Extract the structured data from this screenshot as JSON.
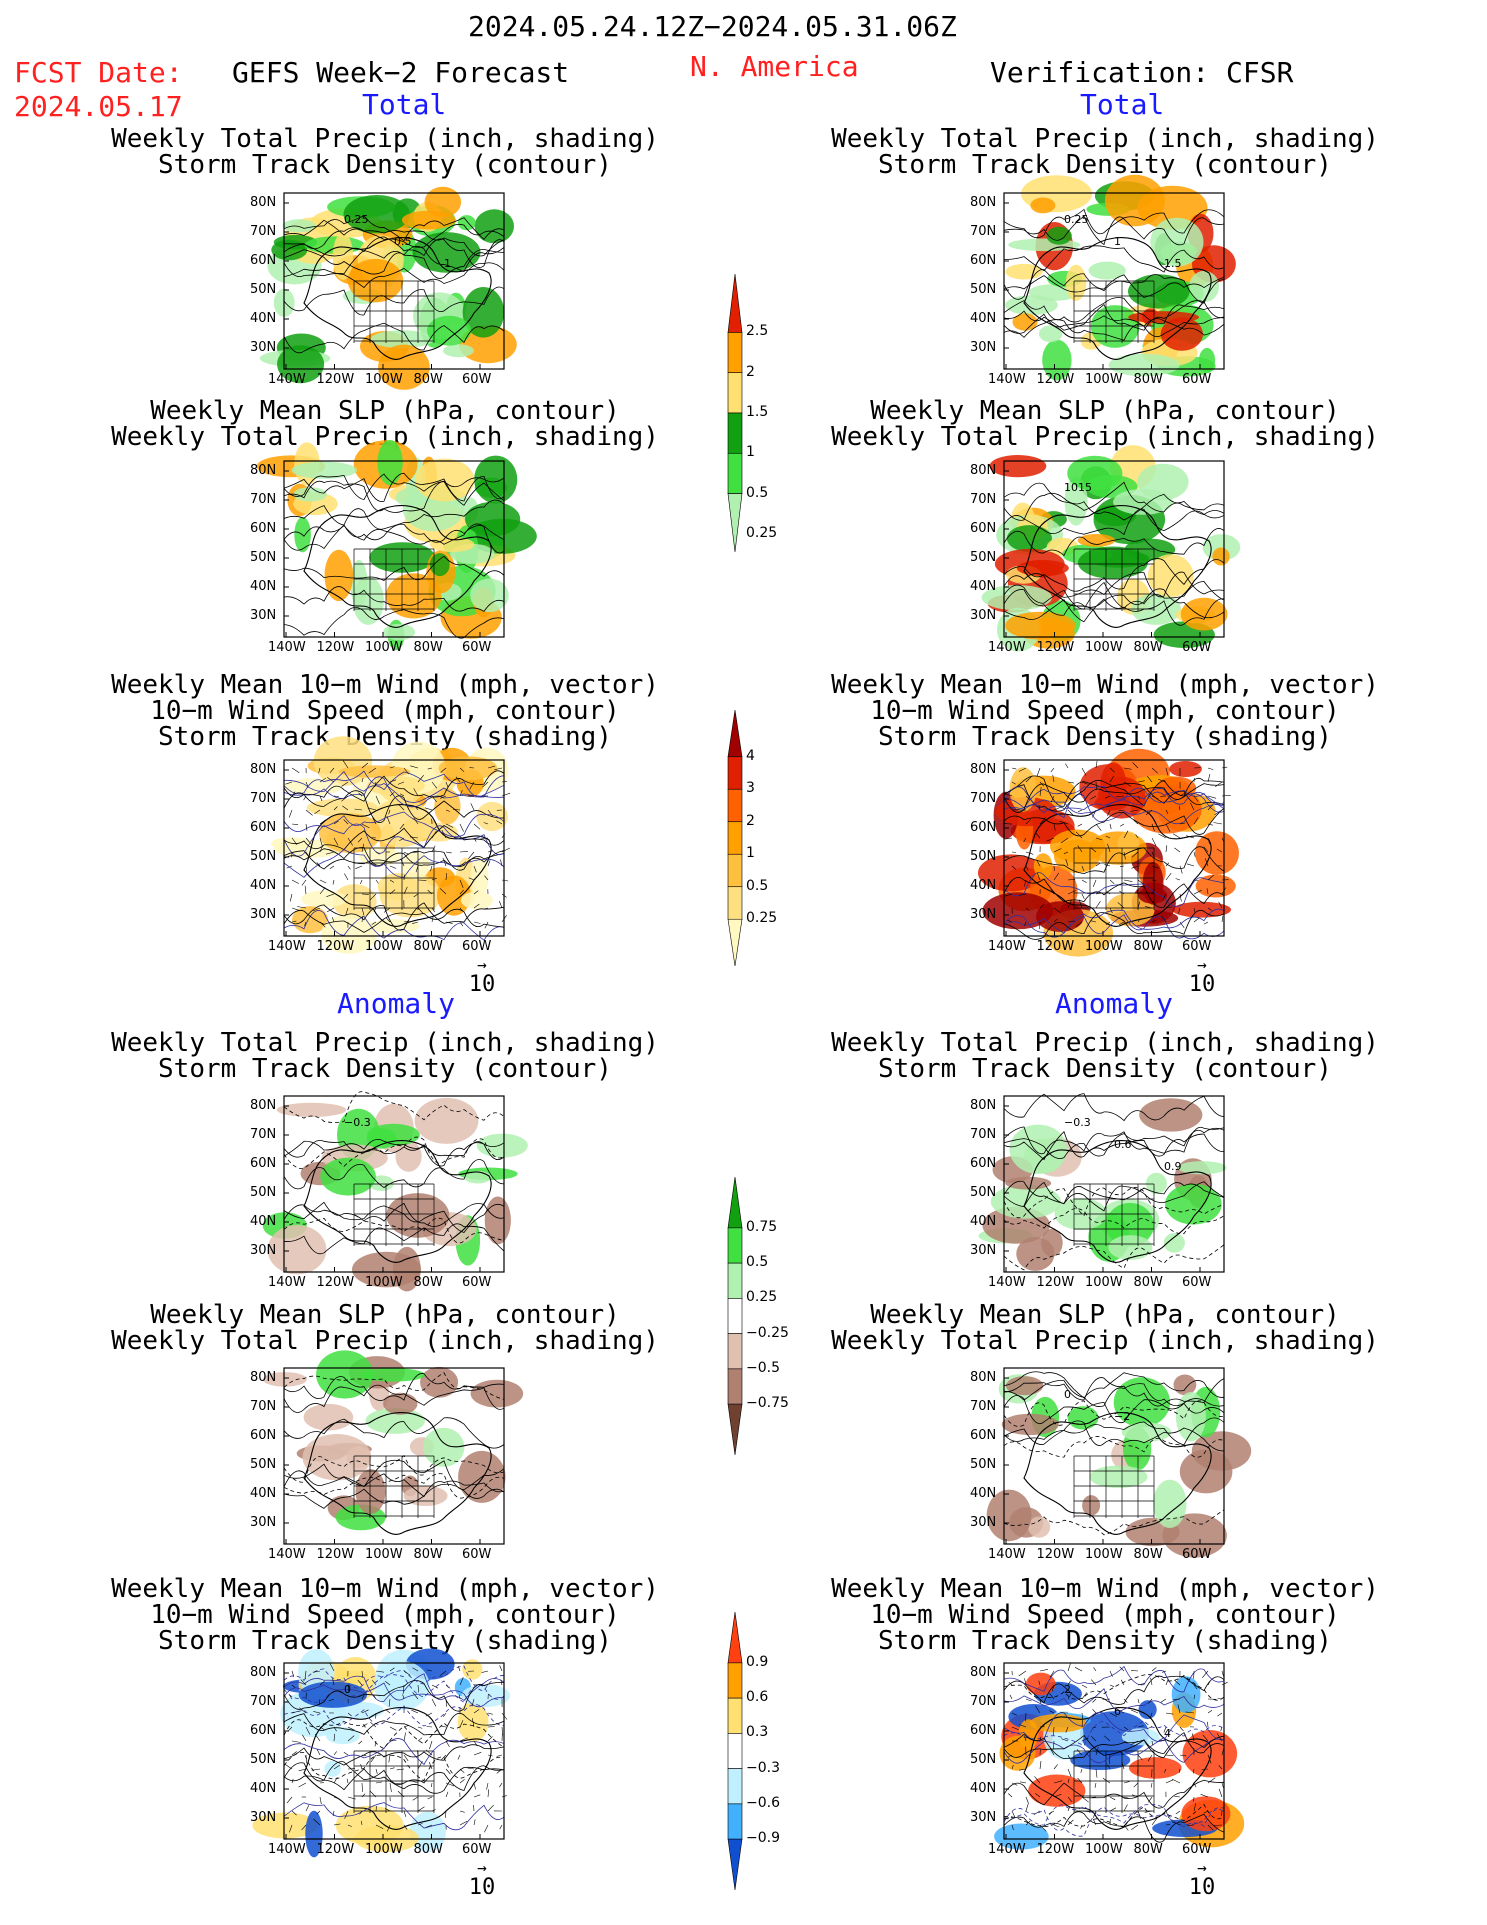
{
  "header": {
    "date_range": "2024.05.24.12Z−2024.05.31.06Z",
    "fcst_label": "FCST Date:",
    "fcst_date": "2024.05.17",
    "forecast_title": "GEFS Week−2 Forecast",
    "region": "N. America",
    "verification": "Verification: CFSR"
  },
  "sections": {
    "total": "Total",
    "anomaly": "Anomaly"
  },
  "titles": {
    "precip_track": [
      "Weekly Total Precip (inch, shading)",
      "Storm Track Density (contour)"
    ],
    "slp_precip": [
      "Weekly Mean SLP (hPa, contour)",
      "Weekly Total Precip (inch, shading)"
    ],
    "wind_track": [
      "Weekly Mean 10−m Wind (mph, vector)",
      "10−m Wind Speed (mph, contour)",
      "Storm Track Density (shading)"
    ]
  },
  "axes": {
    "lat_labels": [
      "80N",
      "70N",
      "60N",
      "50N",
      "40N",
      "30N"
    ],
    "lon_labels": [
      "140W",
      "120W",
      "100W",
      "80W",
      "60W"
    ]
  },
  "vector_ref": "10",
  "colorbars": {
    "precip_total": {
      "labels": [
        "2.5",
        "2",
        "1.5",
        "1",
        "0.5",
        "0.25"
      ],
      "colors": [
        "#e02000",
        "#ffa000",
        "#ffe070",
        "#10a010",
        "#40e040",
        "#b0f0b0"
      ]
    },
    "track_total": {
      "labels": [
        "4",
        "3",
        "2",
        "1",
        "0.5",
        "0.25"
      ],
      "colors": [
        "#a00000",
        "#e02000",
        "#ff6000",
        "#ffa000",
        "#ffc040",
        "#ffe080",
        "#fff8c0"
      ]
    },
    "precip_anom": {
      "labels": [
        "0.75",
        "0.5",
        "0.25",
        "−0.25",
        "−0.5",
        "−0.75"
      ],
      "colors": [
        "#10a010",
        "#40e040",
        "#b0f0b0",
        "#ffffff",
        "#e0c0b0",
        "#b08070",
        "#704030"
      ]
    },
    "track_anom": {
      "labels": [
        "0.9",
        "0.6",
        "0.3",
        "−0.3",
        "−0.6",
        "−0.9"
      ],
      "colors": [
        "#ff4010",
        "#ffa000",
        "#ffe070",
        "#ffffff",
        "#c0f0ff",
        "#40b0ff",
        "#1050d0"
      ]
    }
  },
  "panel_contour_labels": {
    "p1": [
      "0.25",
      "0.5",
      "1"
    ],
    "p2": [
      "0.25",
      "1",
      "1.5"
    ],
    "p4": [
      "1015"
    ],
    "p7": [
      "−0.3"
    ],
    "p8": [
      "−0.3",
      "0.6",
      "0.9"
    ],
    "p10": [
      "0",
      "−2"
    ],
    "p11": [
      "0"
    ],
    "p12": [
      "2",
      "6",
      "4"
    ]
  },
  "panel_palette": {
    "p_total_precip_fc": [
      "#b0f0b0",
      "#40e040",
      "#10a010",
      "#ffe070",
      "#ffa000"
    ],
    "p_total_precip_ver": [
      "#b0f0b0",
      "#40e040",
      "#10a010",
      "#ffe070",
      "#ffa000",
      "#e02000"
    ],
    "p_track_fc": [
      "#fff8c0",
      "#ffe080",
      "#ffc040",
      "#ffa000"
    ],
    "p_track_ver": [
      "#ffc040",
      "#ffa000",
      "#ff6000",
      "#e02000",
      "#a00000"
    ],
    "p_anom_precip": [
      "#b0f0b0",
      "#40e040",
      "#e0c0b0",
      "#b08070"
    ],
    "p_anom_track_fc": [
      "#c0f0ff",
      "#40b0ff",
      "#1050d0",
      "#ffe070"
    ],
    "p_anom_track_ver": [
      "#c0f0ff",
      "#40b0ff",
      "#1050d0",
      "#ff4010",
      "#ffa000"
    ]
  }
}
